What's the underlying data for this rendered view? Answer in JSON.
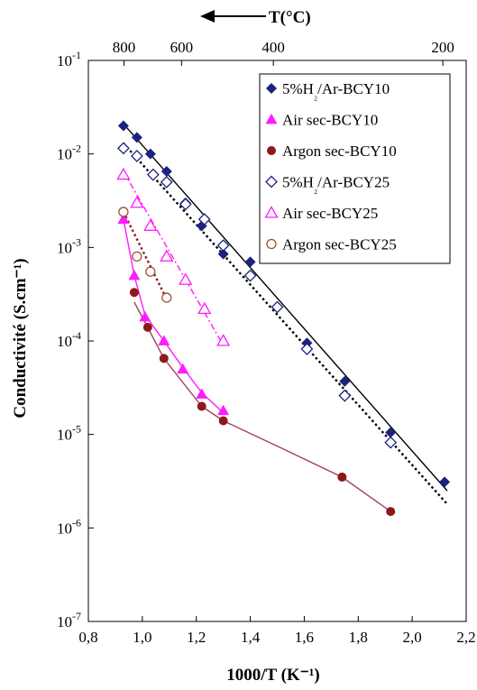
{
  "chart_data": {
    "type": "scatter",
    "title": "",
    "xlabel": "1000/T (K⁻¹)",
    "ylabel": "Conductivité (S.cm⁻¹)",
    "top_axis_label": "T(°C)",
    "xlim": [
      0.8,
      2.2
    ],
    "ylim": [
      1e-07,
      0.1
    ],
    "y_scale": "log",
    "grid": false,
    "legend_position": "top-right",
    "x_ticks": [
      "0,8",
      "1,0",
      "1,2",
      "1,4",
      "1,6",
      "1,8",
      "2,0",
      "2,2"
    ],
    "x_tick_values": [
      0.8,
      1.0,
      1.2,
      1.4,
      1.6,
      1.8,
      2.0,
      2.2
    ],
    "y_tick_exponents": [
      -1,
      -2,
      -3,
      -4,
      -5,
      -6,
      -7
    ],
    "top_ticks": [
      {
        "label": "800",
        "value": 800
      },
      {
        "label": "600",
        "value": 600
      },
      {
        "label": "400",
        "value": 400
      },
      {
        "label": "200",
        "value": 200
      }
    ],
    "series": [
      {
        "name": "5%H₂/Ar-BCY10",
        "marker": "diamond-filled",
        "color": "#1a237e",
        "line_color": "#000000",
        "line_style": "solid",
        "x": [
          0.93,
          0.98,
          1.03,
          1.09,
          1.16,
          1.22,
          1.3,
          1.4,
          1.5,
          1.61,
          1.75,
          1.92,
          2.12
        ],
        "y": [
          0.02,
          0.015,
          0.01,
          0.0065,
          0.003,
          0.0017,
          0.00085,
          0.0007,
          0.00023,
          9.5e-05,
          3.7e-05,
          1.05e-05,
          3.1e-06
        ],
        "fit": [
          [
            0.93,
            0.021
          ],
          [
            2.13,
            2.5e-06
          ]
        ]
      },
      {
        "name": "Air sec-BCY10",
        "marker": "triangle-filled",
        "color": "#ff1aff",
        "line_color": "#ff1aff",
        "line_style": "solid",
        "x": [
          0.93,
          0.97,
          1.01,
          1.08,
          1.15,
          1.22,
          1.3
        ],
        "y": [
          0.002,
          0.0005,
          0.00018,
          0.0001,
          5e-05,
          2.7e-05,
          1.8e-05
        ],
        "fit": [
          [
            0.93,
            0.002
          ],
          [
            0.97,
            0.0005
          ],
          [
            1.01,
            0.00019
          ],
          [
            1.08,
            0.0001
          ],
          [
            1.15,
            5.2e-05
          ],
          [
            1.22,
            2.8e-05
          ],
          [
            1.3,
            1.7e-05
          ]
        ]
      },
      {
        "name": "Argon sec-BCY10",
        "marker": "circle-filled",
        "color": "#8b1a1a",
        "line_color": "#a0425a",
        "line_style": "solid",
        "x": [
          0.97,
          1.02,
          1.08,
          1.22,
          1.3,
          1.74,
          1.92
        ],
        "y": [
          0.00033,
          0.00014,
          6.5e-05,
          2e-05,
          1.4e-05,
          3.5e-06,
          1.5e-06
        ],
        "fit": [
          [
            0.97,
            0.00026
          ],
          [
            1.02,
            0.00014
          ],
          [
            1.08,
            6.5e-05
          ],
          [
            1.22,
            2e-05
          ],
          [
            1.3,
            1.4e-05
          ],
          [
            1.5,
            7.5e-06
          ],
          [
            1.74,
            3.5e-06
          ],
          [
            1.92,
            1.5e-06
          ]
        ]
      },
      {
        "name": "5%H₂/Ar-BCY25",
        "marker": "diamond-open",
        "color": "#1a237e",
        "line_color": "#000000",
        "line_style": "dotted",
        "x": [
          0.93,
          0.98,
          1.04,
          1.09,
          1.16,
          1.23,
          1.3,
          1.4,
          1.5,
          1.61,
          1.75,
          1.92
        ],
        "y": [
          0.0115,
          0.0095,
          0.006,
          0.005,
          0.0029,
          0.002,
          0.00105,
          0.0005,
          0.00023,
          8.2e-05,
          2.6e-05,
          8.2e-06
        ],
        "fit": [
          [
            0.93,
            0.013
          ],
          [
            2.13,
            1.8e-06
          ]
        ]
      },
      {
        "name": "Air sec-BCY25",
        "marker": "triangle-open",
        "color": "#ff1aff",
        "line_color": "#ff1aff",
        "line_style": "dashdot",
        "x": [
          0.93,
          0.98,
          1.03,
          1.09,
          1.16,
          1.23,
          1.3
        ],
        "y": [
          0.006,
          0.003,
          0.0017,
          0.0008,
          0.00045,
          0.00022,
          0.0001
        ],
        "fit": [
          [
            0.93,
            0.0065
          ],
          [
            1.3,
            9e-05
          ]
        ]
      },
      {
        "name": "Argon sec-BCY25",
        "marker": "circle-open",
        "color": "#a0522d",
        "line_color": "#8b1a1a",
        "line_style": "dotted",
        "x": [
          0.93,
          0.98,
          1.03,
          1.09
        ],
        "y": [
          0.0024,
          0.0008,
          0.00055,
          0.00029
        ],
        "fit": [
          [
            0.93,
            0.0024
          ],
          [
            1.09,
            0.00028
          ]
        ]
      }
    ]
  }
}
